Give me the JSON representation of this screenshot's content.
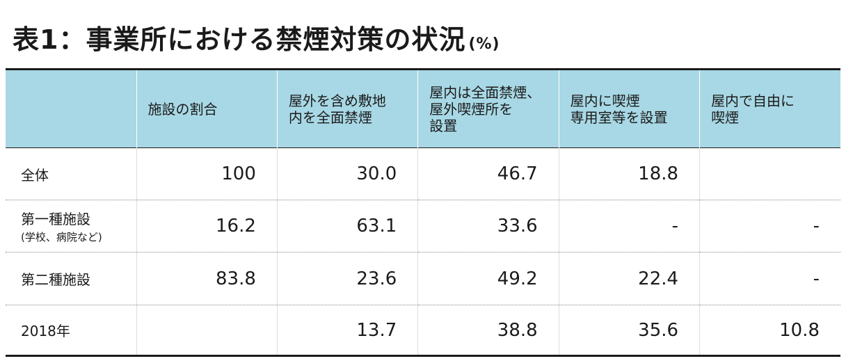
{
  "title": {
    "main": "表1：事業所における禁煙対策の状況",
    "unit": "(%)"
  },
  "columns": [
    "",
    "施設の割合",
    "屋外を含め敷地\n内を全面禁煙",
    "屋内は全面禁煙、\n屋外喫煙所を\n設置",
    "屋内に喫煙\n専用室等を設置",
    "屋内で自由に\n喫煙"
  ],
  "rows": [
    {
      "label": "全体",
      "sublabel": "",
      "values": [
        "100",
        "30.0",
        "46.7",
        "18.8",
        ""
      ]
    },
    {
      "label": "第一種施設",
      "sublabel": "(学校、病院など)",
      "values": [
        "16.2",
        "63.1",
        "33.6",
        "-",
        "-"
      ]
    },
    {
      "label": "第二種施設",
      "sublabel": "",
      "values": [
        "83.8",
        "23.6",
        "49.2",
        "22.4",
        "-"
      ]
    },
    {
      "label": "2018年",
      "sublabel": "",
      "values": [
        "",
        "13.7",
        "38.8",
        "35.6",
        "10.8"
      ]
    }
  ],
  "colors": {
    "header_bg": "#a8d8e5",
    "rule": "#1a1a1a"
  }
}
